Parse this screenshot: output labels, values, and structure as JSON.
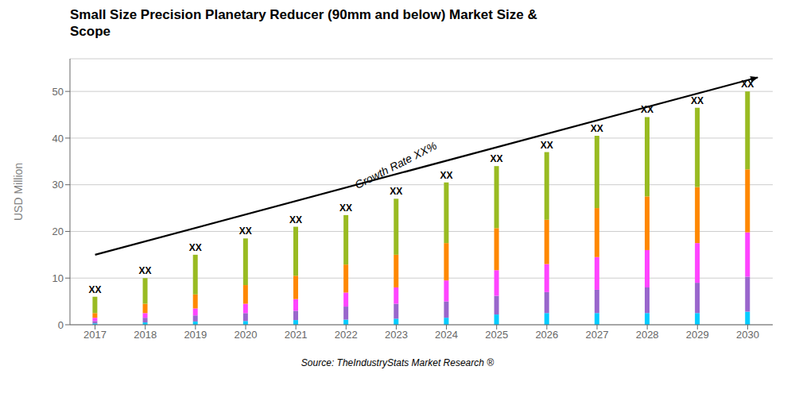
{
  "chart_data": {
    "type": "bar",
    "title": "Small Size Precision Planetary Reducer (90mm and below) Market Size &\nScope",
    "y_label": "USD Million",
    "source": "Source: TheIndustryStats Market Research ®",
    "categories": [
      2017,
      2018,
      2019,
      2020,
      2021,
      2022,
      2023,
      2024,
      2025,
      2026,
      2027,
      2028,
      2029,
      2030
    ],
    "series": [
      {
        "color": "#00CCFF",
        "values": [
          0.3,
          0.5,
          0.7,
          0.8,
          1.0,
          1.1,
          1.3,
          1.5,
          2.2,
          2.5,
          2.5,
          2.5,
          2.5,
          2.8
        ]
      },
      {
        "color": "#9966CC",
        "values": [
          0.5,
          1.0,
          1.3,
          1.7,
          2.0,
          2.8,
          3.2,
          3.5,
          4.0,
          4.5,
          5.0,
          5.5,
          6.5,
          7.5
        ]
      },
      {
        "color": "#FF44FF",
        "values": [
          0.7,
          1.0,
          1.5,
          2.0,
          2.5,
          3.0,
          3.5,
          4.5,
          5.5,
          6.0,
          7.0,
          8.0,
          8.5,
          9.5
        ]
      },
      {
        "color": "#FF8800",
        "values": [
          1.0,
          2.0,
          3.0,
          4.0,
          5.0,
          6.0,
          7.0,
          8.0,
          9.0,
          9.5,
          10.5,
          11.5,
          12.0,
          13.5
        ]
      },
      {
        "color": "#99BB22",
        "values": [
          3.5,
          5.5,
          8.5,
          10.0,
          10.5,
          10.6,
          12.0,
          13.0,
          13.3,
          14.5,
          15.5,
          17.0,
          17.0,
          16.7
        ]
      }
    ],
    "total_labels": [
      "XX",
      "XX",
      "XX",
      "XX",
      "XX",
      "XX",
      "XX",
      "XX",
      "XX",
      "XX",
      "XX",
      "XX",
      "XX",
      "XX"
    ],
    "stacked": true,
    "grid": true,
    "ylim": [
      0,
      57
    ],
    "yticks": [
      0,
      10,
      20,
      30,
      40,
      50
    ],
    "annotations": [
      {
        "type": "arrow",
        "x": 2017.0,
        "y": 15.0,
        "x_end": 2030.2,
        "y_end": 53.0
      },
      {
        "type": "text",
        "text": "Growth Rate XX%",
        "x": 2023.0,
        "y": 34.0
      }
    ]
  }
}
